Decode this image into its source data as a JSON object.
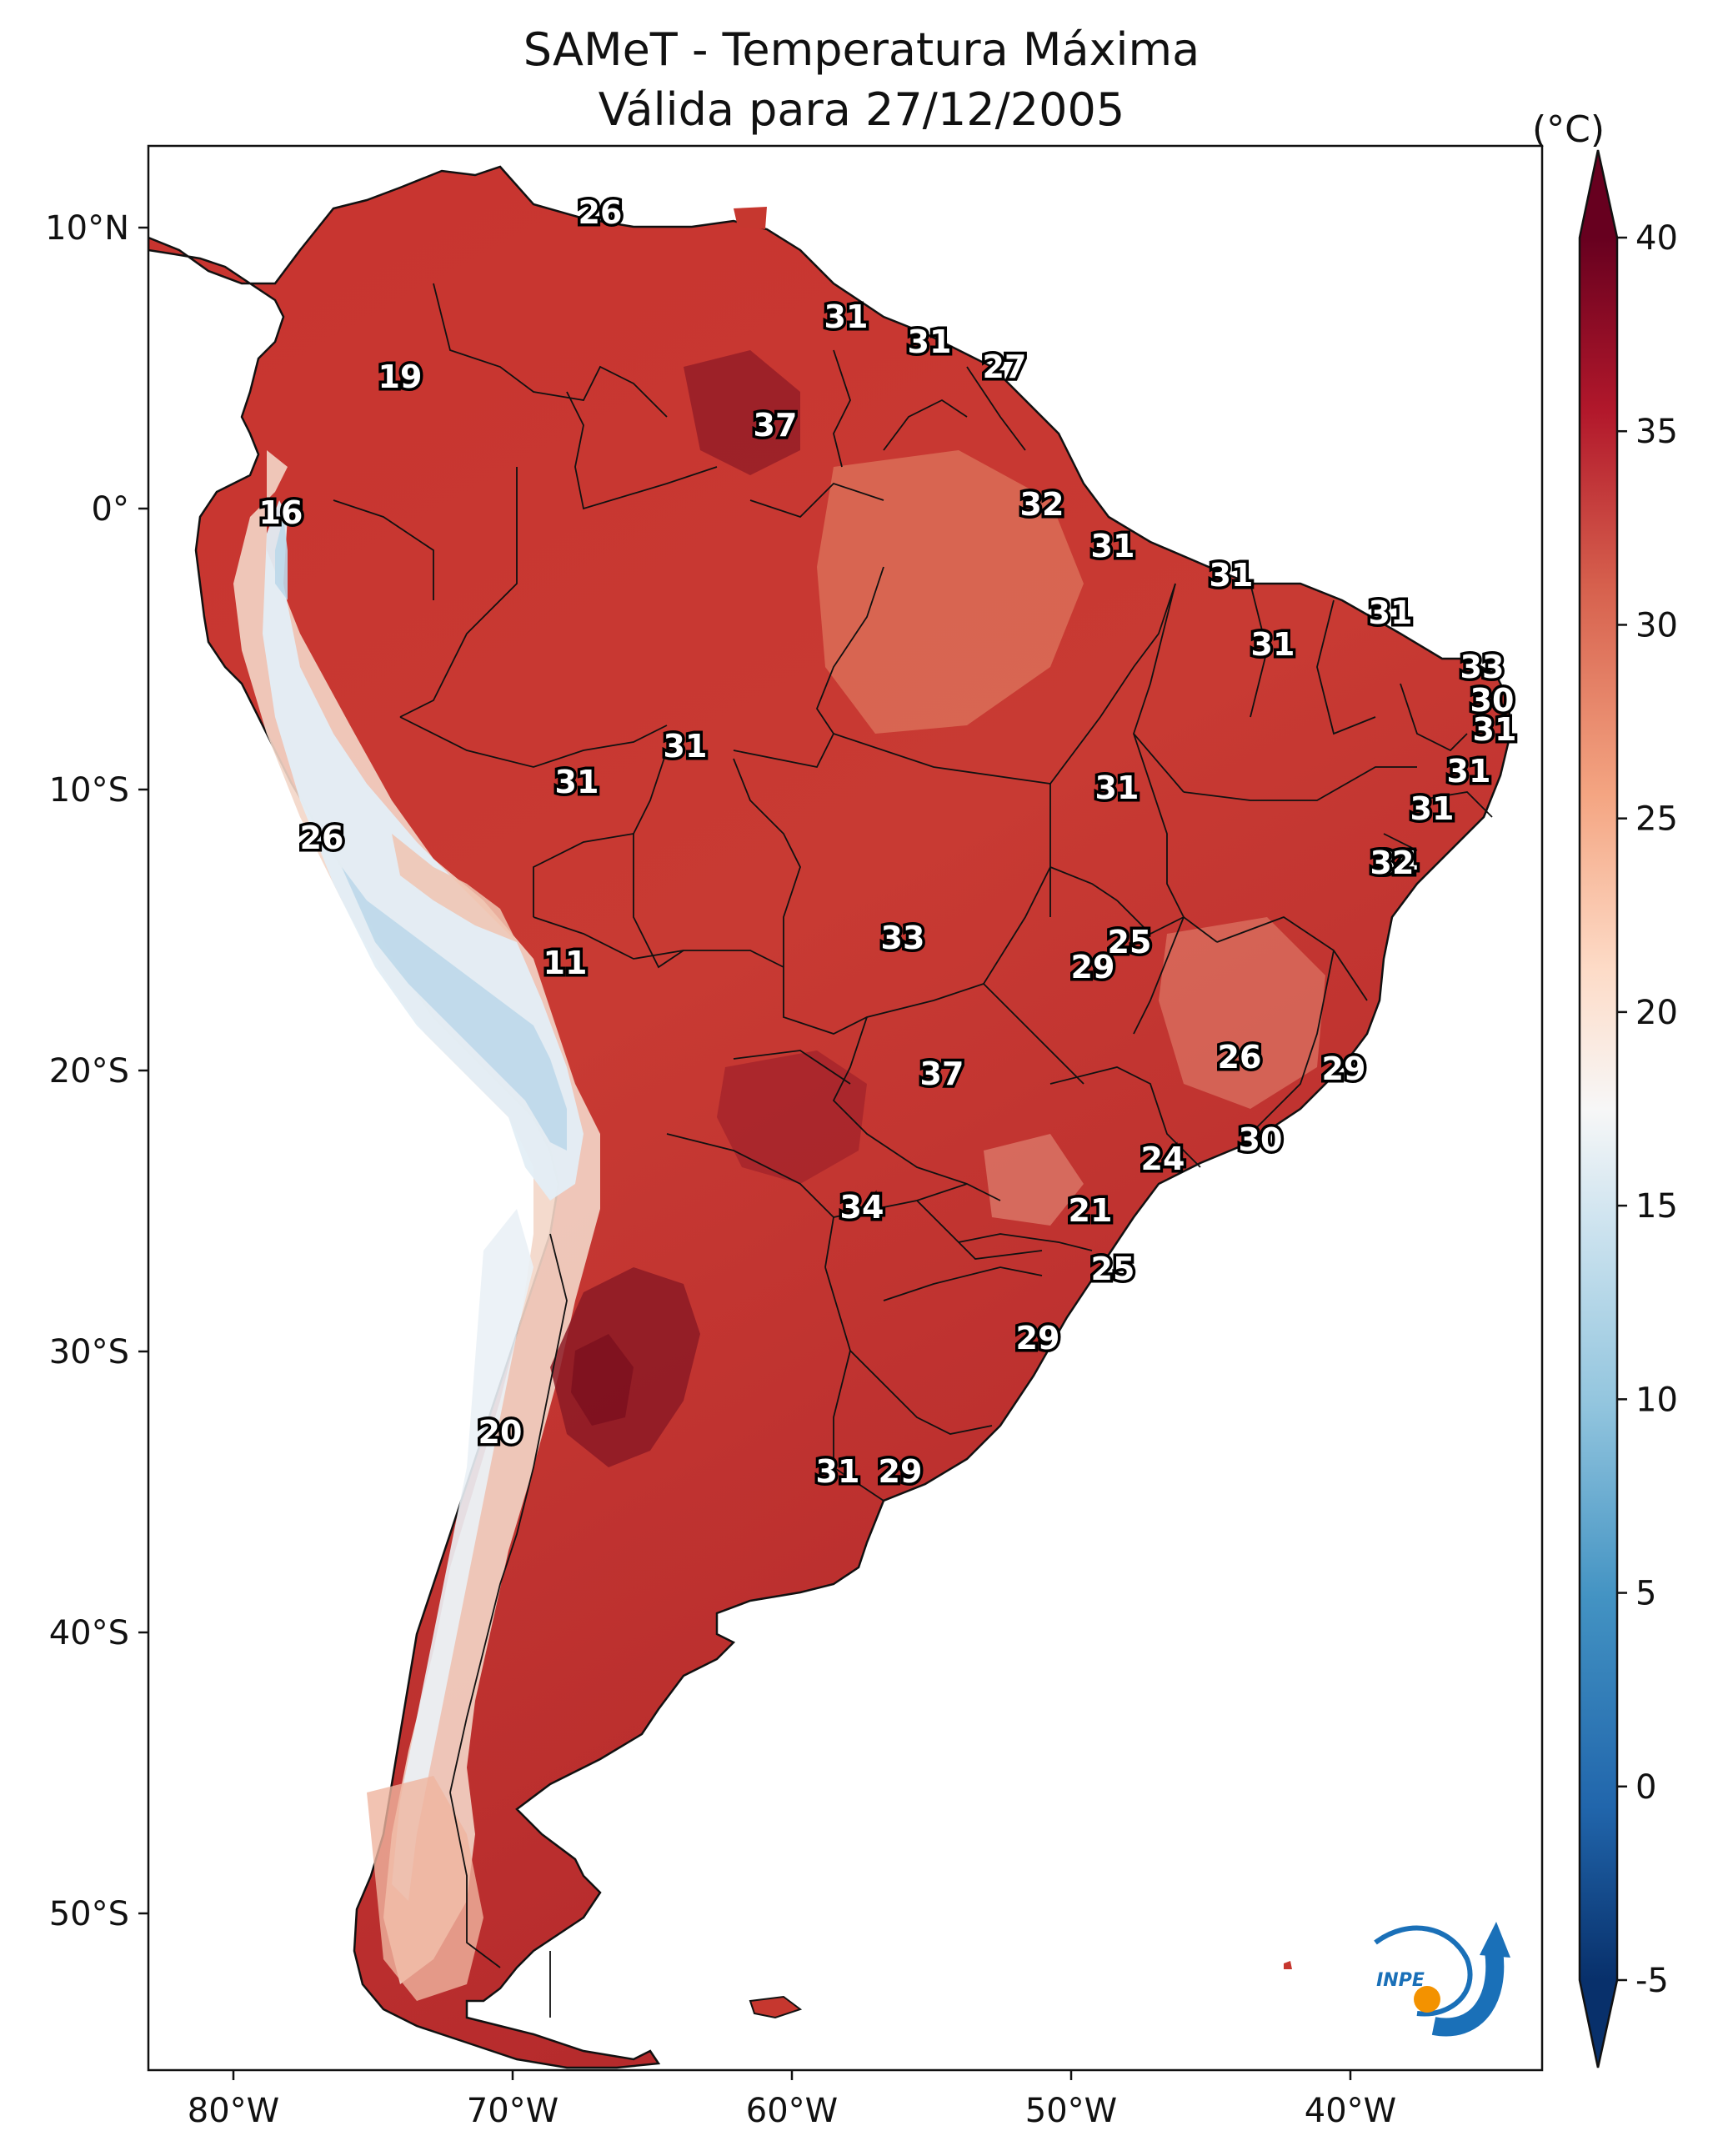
{
  "title": {
    "line1": "SAMeT - Temperatura Máxima",
    "line2": "Válida para 27/12/2005"
  },
  "colorbar": {
    "unit": "(°C)",
    "ticks": [
      "40",
      "35",
      "30",
      "25",
      "20",
      "15",
      "10",
      "5",
      "0",
      "-5"
    ],
    "range": [
      -5,
      40
    ],
    "colors": [
      "#08306b",
      "#2166ac",
      "#4393c3",
      "#92c5de",
      "#d1e5f0",
      "#f7f7f7",
      "#fddbc7",
      "#f4a582",
      "#d6604d",
      "#b2182b",
      "#67001f"
    ]
  },
  "axes": {
    "lon_labels": [
      "80°W",
      "70°W",
      "60°W",
      "50°W",
      "40°W"
    ],
    "lat_labels": [
      "10°N",
      "0°",
      "10°S",
      "20°S",
      "30°S",
      "40°S",
      "50°S"
    ]
  },
  "station_labels": [
    "26",
    "31",
    "31",
    "27",
    "19",
    "37",
    "16",
    "32",
    "31",
    "31",
    "31",
    "31",
    "33",
    "30",
    "31",
    "31",
    "31",
    "31",
    "31",
    "31",
    "34",
    "26",
    "32",
    "11",
    "33",
    "25",
    "29",
    "37",
    "26",
    "29",
    "30",
    "24",
    "34",
    "21",
    "25",
    "29",
    "20",
    "31",
    "29"
  ],
  "logo": {
    "text": "INPE"
  }
}
